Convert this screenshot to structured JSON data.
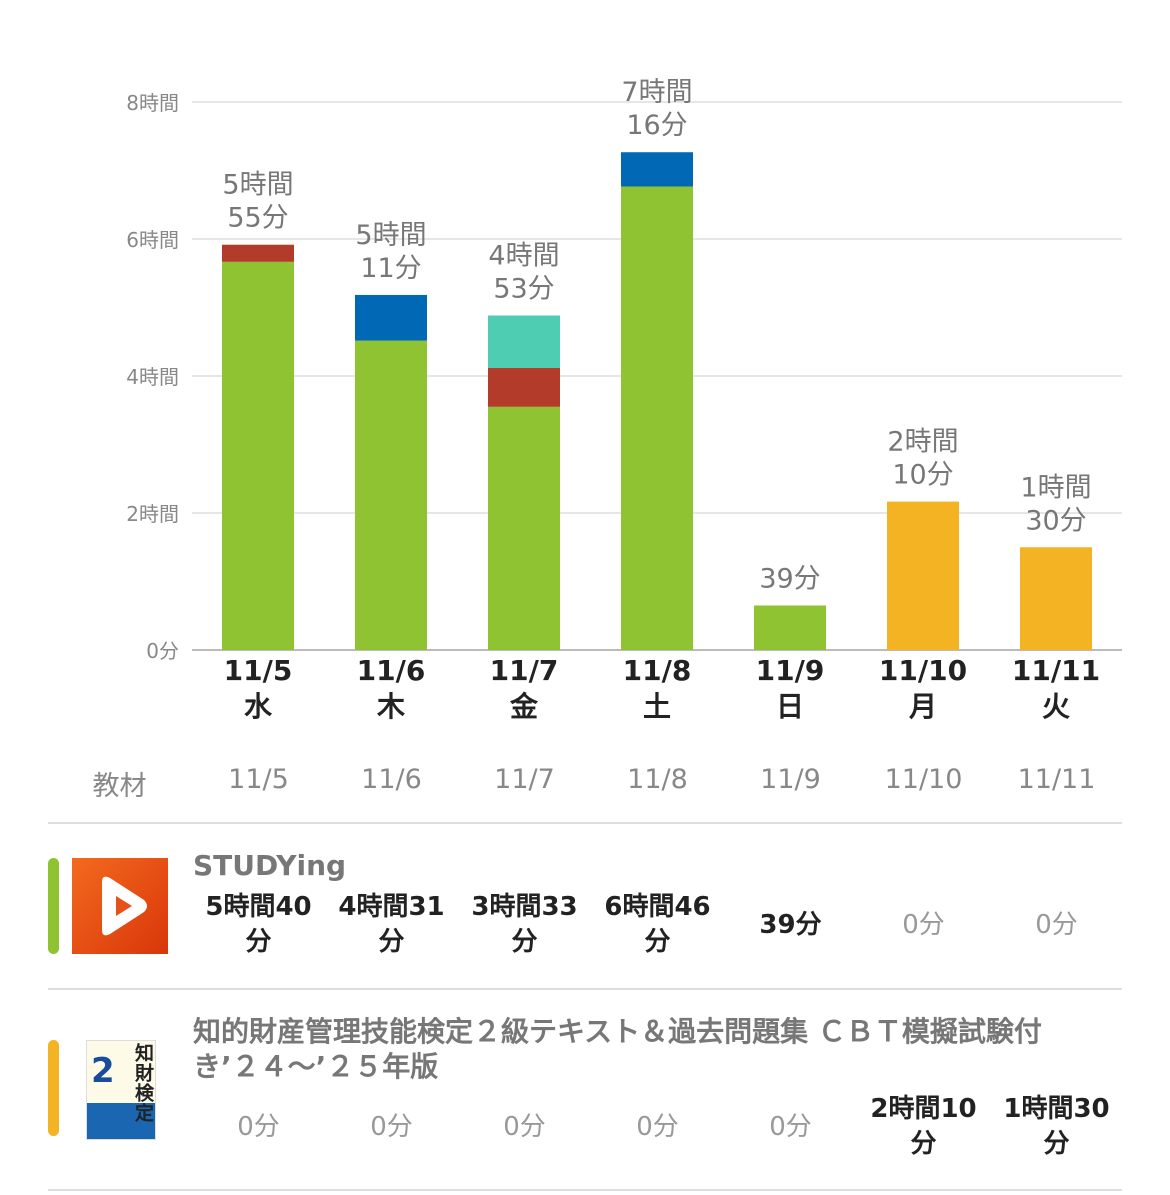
{
  "chart_data": {
    "type": "bar",
    "stacked": true,
    "categories": [
      "11/5",
      "11/6",
      "11/7",
      "11/8",
      "11/9",
      "11/10",
      "11/11"
    ],
    "weekdays": [
      "水",
      "木",
      "金",
      "土",
      "日",
      "月",
      "火"
    ],
    "unit": "minutes",
    "ylim": [
      0,
      480
    ],
    "yticks": [
      0,
      120,
      240,
      360,
      480
    ],
    "ytick_labels": [
      "0分",
      "2時間",
      "4時間",
      "6時間",
      "8時間"
    ],
    "grid": true,
    "total_labels": [
      [
        "5時間",
        "55分"
      ],
      [
        "5時間",
        "11分"
      ],
      [
        "4時間",
        "53分"
      ],
      [
        "7時間",
        "16分"
      ],
      [
        "39分"
      ],
      [
        "2時間",
        "10分"
      ],
      [
        "1時間",
        "30分"
      ]
    ],
    "series": [
      {
        "name": "STUDYing",
        "color": "#8fc331",
        "values": [
          340,
          271,
          213,
          406,
          39,
          0,
          0
        ]
      },
      {
        "name": "",
        "color": "#b33b29",
        "values": [
          15,
          0,
          34,
          0,
          0,
          0,
          0
        ]
      },
      {
        "name": "",
        "color": "#0068b5",
        "values": [
          0,
          40,
          0,
          30,
          0,
          0,
          0
        ]
      },
      {
        "name": "",
        "color": "#4fcdb3",
        "values": [
          0,
          0,
          46,
          0,
          0,
          0,
          0
        ]
      },
      {
        "name": "知的財産管理技能検定２級テキスト＆過去問題集 ＣＢＴ模擬試験付き’２４～’２５年版",
        "color": "#f3b323",
        "values": [
          0,
          0,
          0,
          0,
          0,
          130,
          90
        ]
      }
    ]
  },
  "table": {
    "header_label": "教材",
    "dates": [
      "11/5",
      "11/6",
      "11/7",
      "11/8",
      "11/9",
      "11/10",
      "11/11"
    ],
    "rows": [
      {
        "title": "STUDYing",
        "color": "#8fc331",
        "cells": [
          [
            "5時間40",
            "分"
          ],
          [
            "4時間31",
            "分"
          ],
          [
            "3時間33",
            "分"
          ],
          [
            "6時間46",
            "分"
          ],
          [
            "39分"
          ],
          [
            "0分"
          ],
          [
            "0分"
          ]
        ],
        "bold": [
          true,
          true,
          true,
          true,
          true,
          false,
          false
        ]
      },
      {
        "title_line1": "知的財産管理技能検定２級テキスト＆過去問題集 ＣＢＴ模擬試験付",
        "title_line2": "き’２４～’２５年版",
        "color": "#f3b323",
        "cover_text": "知財検定",
        "cells": [
          [
            "0分"
          ],
          [
            "0分"
          ],
          [
            "0分"
          ],
          [
            "0分"
          ],
          [
            "0分"
          ],
          [
            "2時間10",
            "分"
          ],
          [
            "1時間30",
            "分"
          ]
        ],
        "bold": [
          false,
          false,
          false,
          false,
          false,
          true,
          true
        ]
      }
    ]
  }
}
